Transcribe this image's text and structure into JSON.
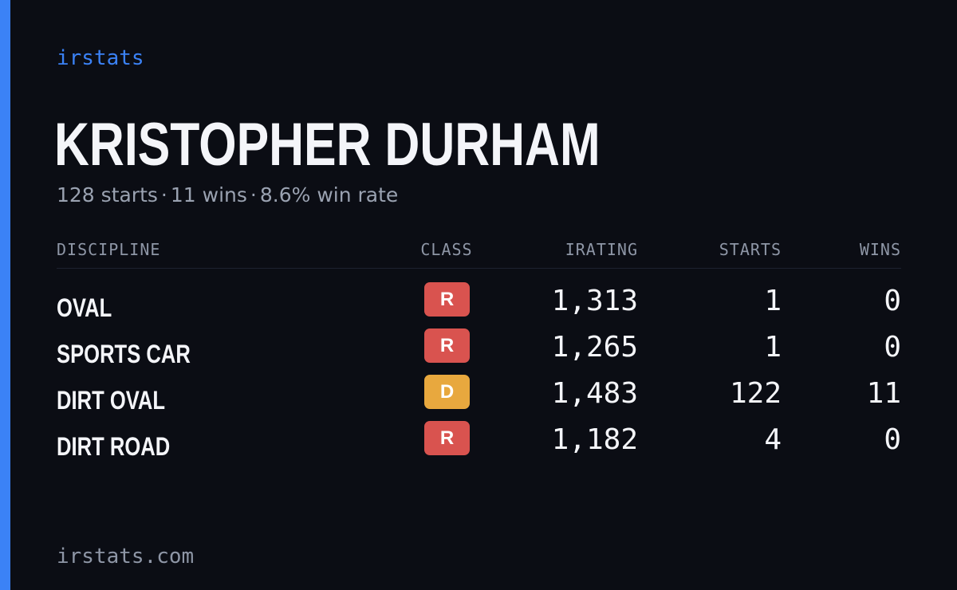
{
  "brand": "irstats",
  "player": {
    "name": "KRISTOPHER DURHAM",
    "starts_text": "128 starts",
    "wins_text": "11 wins",
    "win_rate_text": "8.6% win rate",
    "separator": "·"
  },
  "table": {
    "headers": {
      "discipline": "DISCIPLINE",
      "class": "CLASS",
      "irating": "IRATING",
      "starts": "STARTS",
      "wins": "WINS"
    },
    "rows": [
      {
        "discipline": "OVAL",
        "class": "R",
        "irating": "1,313",
        "starts": "1",
        "wins": "0"
      },
      {
        "discipline": "SPORTS CAR",
        "class": "R",
        "irating": "1,265",
        "starts": "1",
        "wins": "0"
      },
      {
        "discipline": "DIRT OVAL",
        "class": "D",
        "irating": "1,483",
        "starts": "122",
        "wins": "11"
      },
      {
        "discipline": "DIRT ROAD",
        "class": "R",
        "irating": "1,182",
        "starts": "4",
        "wins": "0"
      }
    ]
  },
  "footer": "irstats.com",
  "colors": {
    "background": "#0b0d14",
    "accent": "#3b82f6",
    "class_r": "#d9534f",
    "class_d": "#e8a83e"
  }
}
